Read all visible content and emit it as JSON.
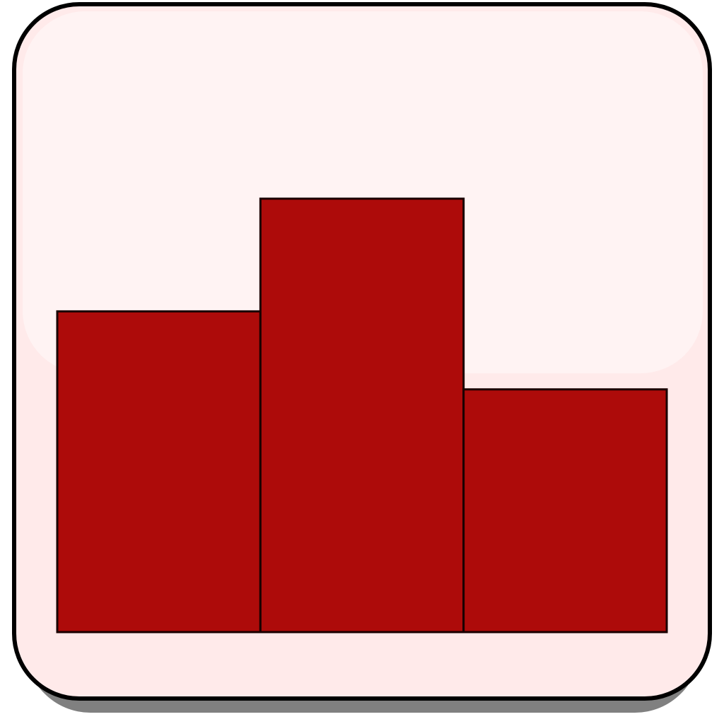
{
  "icon": {
    "name": "bar-chart-icon",
    "colors": {
      "background": "#ffeaea",
      "highlight": "#fff3f3",
      "border": "#000000",
      "shadow": "#808080",
      "bar_fill": "#ad0b0a",
      "bar_stroke": "#1a0000"
    },
    "bars": [
      {
        "name": "bar-left",
        "relative_height": 0.74
      },
      {
        "name": "bar-middle",
        "relative_height": 1.0
      },
      {
        "name": "bar-right",
        "relative_height": 0.56
      }
    ]
  }
}
